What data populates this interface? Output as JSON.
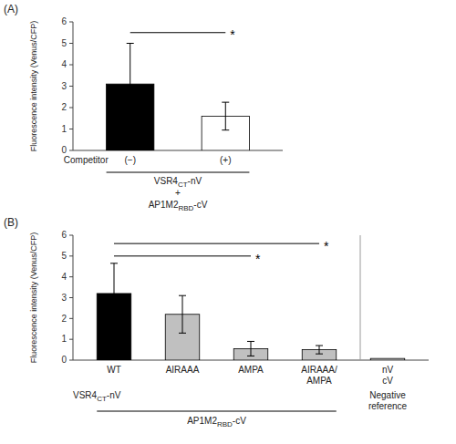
{
  "chart_data": [
    {
      "type": "bar",
      "title": "(A)",
      "categories": [
        "(−)",
        "(+)"
      ],
      "values": [
        3.1,
        1.6
      ],
      "errors": [
        1.9,
        0.65
      ],
      "colors": [
        "#000000",
        "#ffffff"
      ],
      "ylabel": "Fluorescence intensity (Venus/CFP)",
      "ylim": [
        0,
        6
      ],
      "yticks": [
        0,
        1,
        2,
        3,
        4,
        5,
        6
      ],
      "significance": [
        {
          "from": "(−)",
          "to": "(+)",
          "y": 5.5,
          "label": "*"
        }
      ],
      "annotations": [
        {
          "text": "Competitor"
        },
        {
          "text": "VSR4CT-nV",
          "subscript": "CT",
          "span": [
            "(−)",
            "(+)"
          ]
        },
        {
          "text": "+"
        },
        {
          "text": "AP1M2RBD-cV",
          "subscript": "RBD"
        }
      ]
    },
    {
      "type": "bar",
      "title": "(B)",
      "categories": [
        "WT",
        "AIRAAA",
        "AMPA",
        "AIRAAA/\nAMPA",
        "nV\ncV"
      ],
      "values": [
        3.2,
        2.2,
        0.55,
        0.5,
        0.08
      ],
      "errors": [
        1.45,
        0.9,
        0.35,
        0.2,
        0.0
      ],
      "colors": [
        "#000000",
        "#c0c0c0",
        "#c0c0c0",
        "#c0c0c0",
        "#d3d3d3"
      ],
      "ylabel": "Fluorescence intensity (Venus/CFP)",
      "ylim": [
        0,
        6
      ],
      "yticks": [
        0,
        1,
        2,
        3,
        4,
        5,
        6
      ],
      "significance": [
        {
          "from": "WT",
          "to": "AMPA",
          "y": 5.0,
          "label": "*"
        },
        {
          "from": "WT",
          "to": "AIRAAA/\nAMPA",
          "y": 5.6,
          "label": "*"
        }
      ],
      "annotations": [
        {
          "text": "VSR4CT-nV",
          "subscript": "CT"
        },
        {
          "text": "AP1M2RBD-cV",
          "subscript": "RBD",
          "span": [
            "WT",
            "AIRAAA/\nAMPA"
          ]
        },
        {
          "text": "Negative\nreference"
        }
      ]
    }
  ]
}
